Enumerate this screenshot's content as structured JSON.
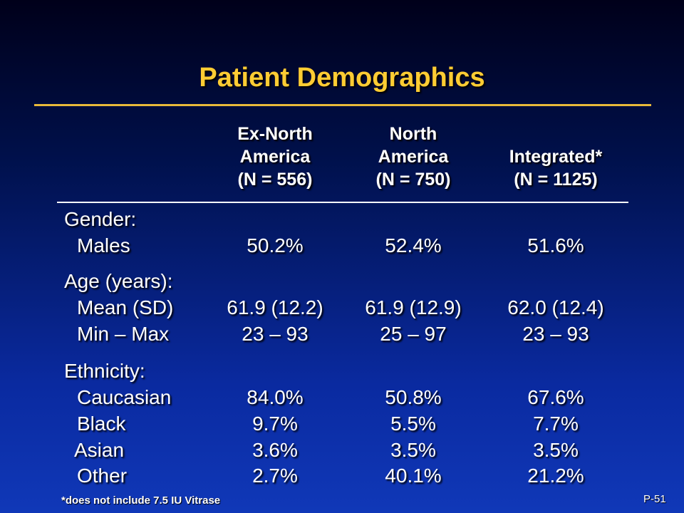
{
  "title": "Patient Demographics",
  "columns": [
    {
      "line1": "Ex-North",
      "line2": "America",
      "line3": "(N = 556)"
    },
    {
      "line1": "North",
      "line2": "America",
      "line3": "(N = 750)"
    },
    {
      "line1": "",
      "line2": "Integrated*",
      "line3": "(N = 1125)"
    }
  ],
  "gender": {
    "label": "Gender:",
    "males": {
      "label": "Males",
      "values": [
        "50.2%",
        "52.4%",
        "51.6%"
      ]
    }
  },
  "age": {
    "label": "Age (years):",
    "mean": {
      "label": "Mean (SD)",
      "values": [
        "61.9 (12.2)",
        "61.9 (12.9)",
        "62.0 (12.4)"
      ]
    },
    "range": {
      "label": "Min – Max",
      "values": [
        "23 – 93",
        "25 – 97",
        "23 – 93"
      ]
    }
  },
  "ethnicity": {
    "label": "Ethnicity:",
    "caucasian": {
      "label": "Caucasian",
      "values": [
        "84.0%",
        "50.8%",
        "67.6%"
      ]
    },
    "black": {
      "label": "Black",
      "values": [
        "9.7%",
        "5.5%",
        "7.7%"
      ]
    },
    "asian": {
      "label": "Asian",
      "values": [
        "3.6%",
        "3.5%",
        "3.5%"
      ]
    },
    "other": {
      "label": "Other",
      "values": [
        "2.7%",
        "40.1%",
        "21.2%"
      ]
    }
  },
  "footnote": "*does not include 7.5 IU Vitrase",
  "slide_number": "P-51"
}
